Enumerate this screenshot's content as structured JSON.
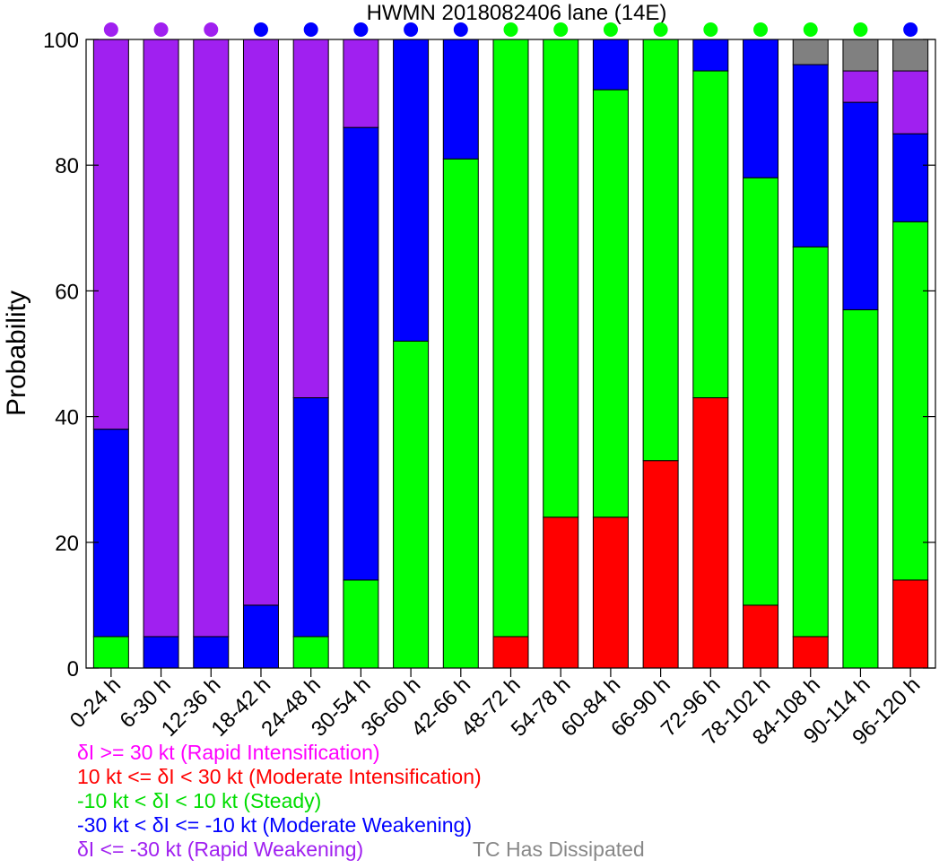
{
  "chart_data": {
    "type": "bar",
    "stacked": true,
    "title": "HWMN 2018082406 lane (14E)",
    "xlabel": "",
    "ylabel": "Probability",
    "ylim": [
      0,
      100
    ],
    "yticks": [
      0,
      20,
      40,
      60,
      80,
      100
    ],
    "grid": false,
    "categories": [
      "0-24 h",
      "6-30 h",
      "12-36 h",
      "18-42 h",
      "24-48 h",
      "30-54 h",
      "36-60 h",
      "42-66 h",
      "48-72 h",
      "54-78 h",
      "60-84 h",
      "66-90 h",
      "72-96 h",
      "78-102 h",
      "84-108 h",
      "90-114 h",
      "96-120 h"
    ],
    "series": [
      {
        "key": "moderate_intensification",
        "color": "#ff0000",
        "values": [
          0,
          0,
          0,
          0,
          0,
          0,
          0,
          0,
          5,
          24,
          24,
          33,
          43,
          10,
          5,
          0,
          14
        ]
      },
      {
        "key": "steady",
        "color": "#00ff00",
        "values": [
          5,
          0,
          0,
          0,
          5,
          14,
          52,
          81,
          95,
          76,
          68,
          67,
          52,
          68,
          62,
          57,
          57
        ]
      },
      {
        "key": "moderate_weakening",
        "color": "#0000ff",
        "values": [
          33,
          5,
          5,
          10,
          38,
          72,
          48,
          19,
          0,
          0,
          8,
          0,
          5,
          22,
          29,
          33,
          14
        ]
      },
      {
        "key": "rapid_weakening",
        "color": "#a020f0",
        "values": [
          62,
          95,
          95,
          90,
          57,
          14,
          0,
          0,
          0,
          0,
          0,
          0,
          0,
          0,
          0,
          5,
          10
        ]
      },
      {
        "key": "dissipated",
        "color": "#808080",
        "values": [
          0,
          0,
          0,
          0,
          0,
          0,
          0,
          0,
          0,
          0,
          0,
          0,
          0,
          0,
          4,
          5,
          5
        ]
      }
    ],
    "top_markers": [
      "#a020f0",
      "#a020f0",
      "#a020f0",
      "#0000ff",
      "#0000ff",
      "#0000ff",
      "#0000ff",
      "#0000ff",
      "#00ff00",
      "#00ff00",
      "#00ff00",
      "#00ff00",
      "#00ff00",
      "#00ff00",
      "#00ff00",
      "#00ff00",
      "#0000ff"
    ]
  },
  "legend": {
    "rapid_intensification": {
      "text": "δI >= 30 kt (Rapid Intensification)",
      "color": "#ff00ff"
    },
    "moderate_intensification": {
      "text": "10 kt <= δI < 30 kt (Moderate Intensification)",
      "color": "#ff0000"
    },
    "steady": {
      "text": "-10 kt < δI < 10 kt (Steady)",
      "color": "#00dd00"
    },
    "moderate_weakening": {
      "text": "-30 kt < δI <= -10 kt (Moderate Weakening)",
      "color": "#0000ff"
    },
    "rapid_weakening": {
      "text": "δI <= -30 kt (Rapid Weakening)",
      "color": "#a020f0"
    },
    "dissipated": {
      "text": "TC Has Dissipated",
      "color": "#888888"
    }
  }
}
